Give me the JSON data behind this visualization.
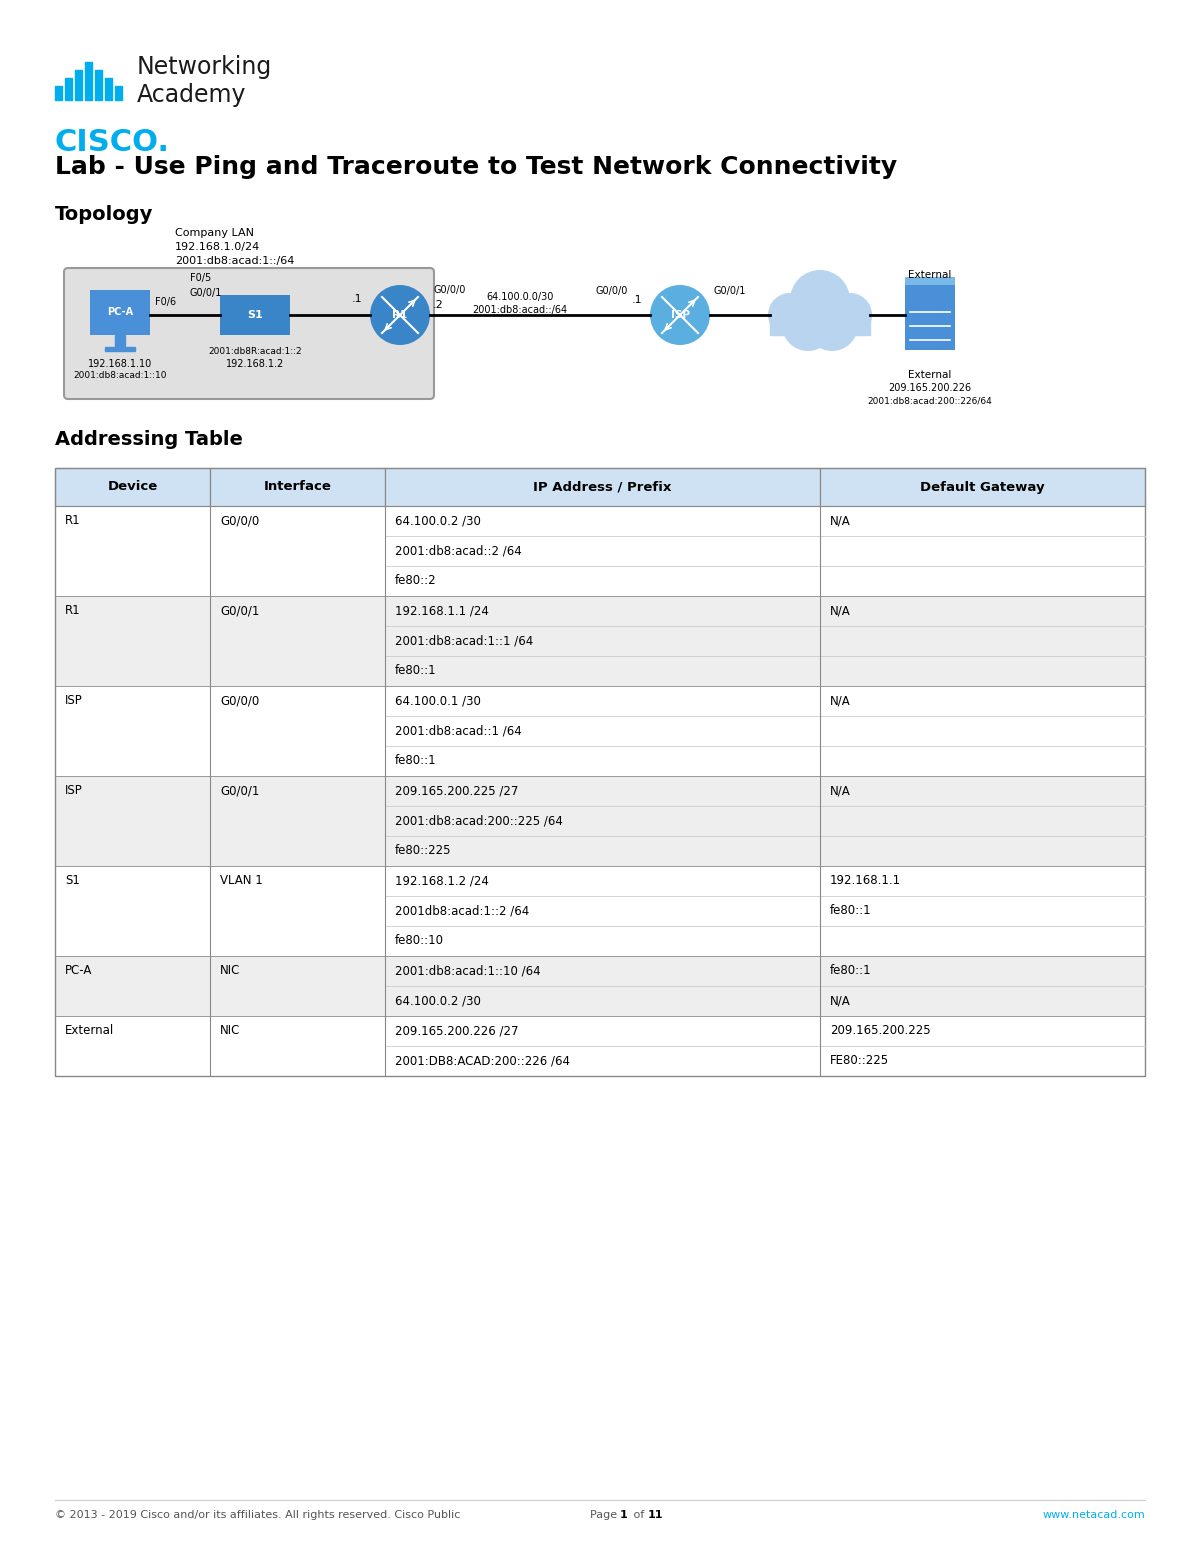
{
  "title": "Lab - Use Ping and Traceroute to Test Network Connectivity",
  "section_topology": "Topology",
  "section_table": "Addressing Table",
  "bg_color": "#ffffff",
  "cisco_blue": "#00aeef",
  "header_bg": "#cfe2f3",
  "row_bg_alt": "#f2f2f2",
  "row_bg_main": "#ffffff",
  "table_headers": [
    "Device",
    "Interface",
    "IP Address / Prefix",
    "Default Gateway"
  ],
  "table_data": [
    [
      "R1",
      "G0/0/0",
      "64.100.0.2 /30",
      "N/A"
    ],
    [
      "",
      "",
      "2001:db8:acad::2 /64",
      ""
    ],
    [
      "",
      "",
      "fe80::2",
      ""
    ],
    [
      "R1",
      "G0/0/1",
      "192.168.1.1 /24",
      "N/A"
    ],
    [
      "",
      "",
      "2001:db8:acad:1::1 /64",
      ""
    ],
    [
      "",
      "",
      "fe80::1",
      ""
    ],
    [
      "ISP",
      "G0/0/0",
      "64.100.0.1 /30",
      "N/A"
    ],
    [
      "",
      "",
      "2001:db8:acad::1 /64",
      ""
    ],
    [
      "",
      "",
      "fe80::1",
      ""
    ],
    [
      "ISP",
      "G0/0/1",
      "209.165.200.225 /27",
      "N/A"
    ],
    [
      "",
      "",
      "2001:db8:acad:200::225 /64",
      ""
    ],
    [
      "",
      "",
      "fe80::225",
      ""
    ],
    [
      "S1",
      "VLAN 1",
      "192.168.1.2 /24",
      "192.168.1.1"
    ],
    [
      "",
      "",
      "2001db8:acad:1::2 /64",
      "fe80::1"
    ],
    [
      "",
      "",
      "fe80::10",
      ""
    ],
    [
      "PC-A",
      "NIC",
      "2001:db8:acad:1::10 /64",
      "fe80::1"
    ],
    [
      "",
      "",
      "64.100.0.2 /30",
      "N/A"
    ],
    [
      "External",
      "NIC",
      "209.165.200.226 /27",
      "209.165.200.225"
    ],
    [
      "",
      "",
      "2001:DB8:ACAD:200::226 /64",
      "FE80::225"
    ]
  ],
  "footer_left": "© 2013 - 2019 Cisco and/or its affiliates. All rights reserved. Cisco Public",
  "footer_mid_a": "Page ",
  "footer_mid_b": "1",
  "footer_mid_c": " of ",
  "footer_mid_d": "11",
  "footer_right": "www.netacad.com",
  "topology_lan_label_line1": "Company LAN",
  "topology_lan_label_line2": "192.168.1.0/24",
  "topology_lan_label_line3": "2001:db8:acad:1::/64",
  "topology_net_label_line1": "64.100.0.0/30",
  "topology_net_label_line2": "2001:db8:acad::/64"
}
